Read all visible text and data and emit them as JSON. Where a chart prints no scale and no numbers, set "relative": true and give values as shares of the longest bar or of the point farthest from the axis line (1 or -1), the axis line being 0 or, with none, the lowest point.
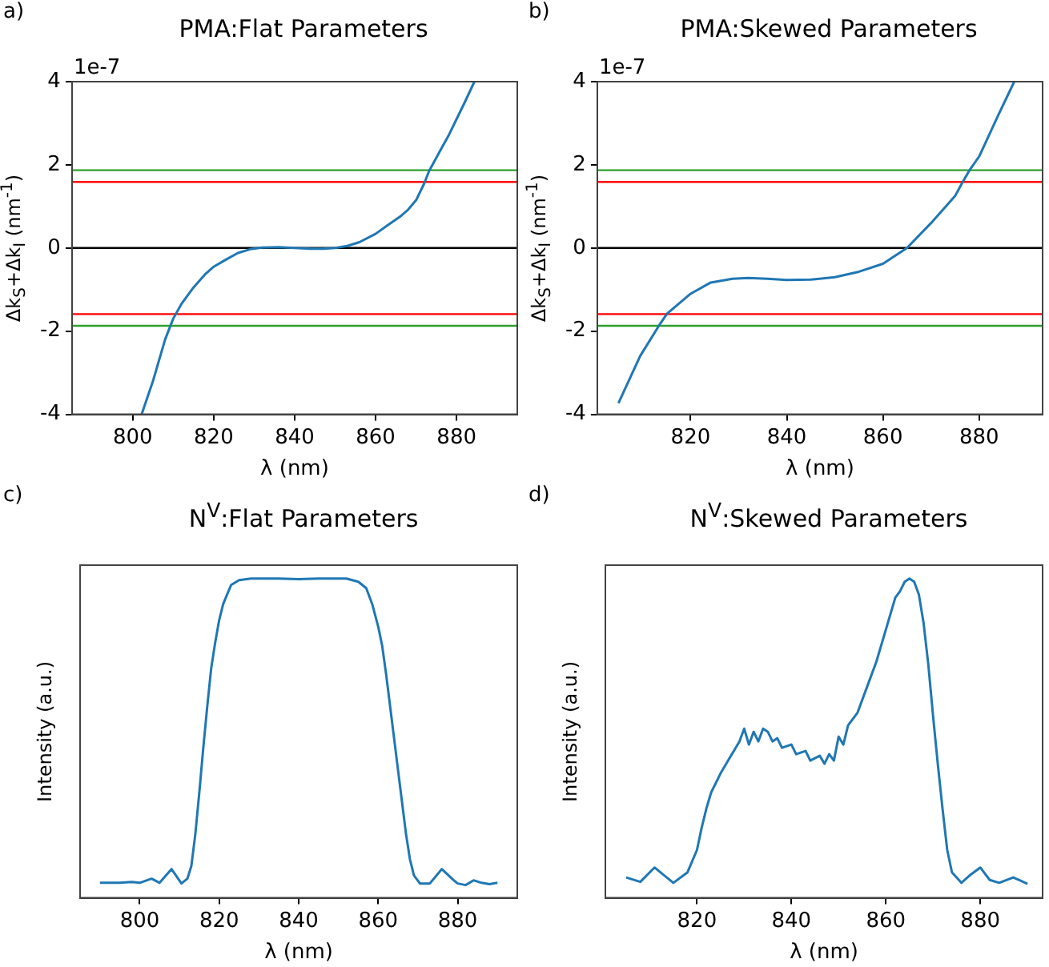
{
  "chart_data": [
    {
      "type": "line",
      "title": "PMA:Flat Parameters",
      "xlabel": "λ (nm)",
      "ylabel": "Δk$_{S}$+Δk$_{I}$ (nm$^{-1}$)",
      "annotations": [
        "a)",
        "1e-7"
      ],
      "x": [
        802.2,
        805,
        808,
        810,
        812,
        815,
        818,
        820,
        823,
        826,
        829,
        832,
        836,
        840,
        844,
        847,
        850,
        853,
        856,
        860,
        863,
        866,
        868,
        870,
        872,
        873.2,
        876,
        878,
        880,
        882,
        884.4
      ],
      "series": [
        {
          "color": "#1f77b4",
          "values": [
            -4,
            -3.2,
            -2.2,
            -1.7,
            -1.35,
            -0.95,
            -0.62,
            -0.45,
            -0.28,
            -0.12,
            -0.03,
            0.01,
            0.02,
            0,
            -0.02,
            -0.02,
            0,
            0.05,
            0.14,
            0.34,
            0.55,
            0.75,
            0.92,
            1.15,
            1.55,
            1.85,
            2.35,
            2.7,
            3.1,
            3.5,
            4
          ]
        }
      ],
      "xlim": [
        785,
        895
      ],
      "xticks": [
        800,
        820,
        840,
        860,
        880
      ],
      "ylim": [
        -4,
        4
      ],
      "yticks": [
        -4,
        -2,
        0,
        2,
        4
      ],
      "ref_lines": [
        {
          "axis": "y",
          "value": 1.87,
          "color": "#2ca02c"
        },
        {
          "axis": "y",
          "value": 1.59,
          "color": "#ff0000"
        },
        {
          "axis": "y",
          "value": 0,
          "color": "#000000"
        },
        {
          "axis": "y",
          "value": -1.59,
          "color": "#ff0000"
        },
        {
          "axis": "y",
          "value": -1.87,
          "color": "#2ca02c"
        }
      ],
      "legend": false,
      "grid": false,
      "marker": "none"
    },
    {
      "type": "line",
      "title": "PMA:Skewed Parameters",
      "xlabel": "λ (nm)",
      "ylabel": "Δk$_{S}$+Δk$_{I}$ (nm$^{-1}$)",
      "annotations": [
        "b)",
        "1e-7"
      ],
      "x": [
        805,
        809.5,
        813.4,
        815.1,
        820,
        824.2,
        828.7,
        832,
        836,
        840,
        845,
        850,
        855,
        860,
        865,
        870,
        875,
        876.5,
        878,
        880,
        884,
        887.3
      ],
      "series": [
        {
          "color": "#1f77b4",
          "values": [
            -3.73,
            -2.6,
            -1.87,
            -1.58,
            -1.1,
            -0.83,
            -0.74,
            -0.72,
            -0.74,
            -0.77,
            -0.76,
            -0.7,
            -0.57,
            -0.38,
            0,
            0.6,
            1.25,
            1.57,
            1.87,
            2.2,
            3.2,
            4
          ]
        }
      ],
      "xlim": [
        800.6,
        893.2
      ],
      "xticks": [
        820,
        840,
        860,
        880
      ],
      "ylim": [
        -4,
        4
      ],
      "yticks": [
        -4,
        -2,
        0,
        2,
        4
      ],
      "ref_lines": [
        {
          "axis": "y",
          "value": 1.87,
          "color": "#2ca02c"
        },
        {
          "axis": "y",
          "value": 1.59,
          "color": "#ff0000"
        },
        {
          "axis": "y",
          "value": 0,
          "color": "#000000"
        },
        {
          "axis": "y",
          "value": -1.59,
          "color": "#ff0000"
        },
        {
          "axis": "y",
          "value": -1.87,
          "color": "#2ca02c"
        }
      ],
      "legend": false,
      "grid": false,
      "marker": "none"
    },
    {
      "type": "line",
      "title": "N$^{V}$:Flat Parameters",
      "xlabel": "λ (nm)",
      "ylabel": "Intensity (a.u.)",
      "annotations": [
        "c)"
      ],
      "relative": true,
      "x": [
        790,
        795,
        798,
        800,
        803,
        805,
        808,
        810.5,
        812,
        813,
        814,
        815,
        816,
        817,
        818,
        819,
        820,
        821,
        822,
        823,
        825,
        828,
        835,
        840,
        845,
        852,
        855,
        857,
        858.5,
        860,
        861,
        862,
        863,
        864,
        865,
        866,
        867,
        868,
        869,
        870.5,
        873,
        876,
        879,
        880,
        882,
        884,
        886,
        888,
        890
      ],
      "series": [
        {
          "color": "#1f77b4",
          "values": [
            0.047,
            0.047,
            0.05,
            0.047,
            0.06,
            0.047,
            0.09,
            0.045,
            0.06,
            0.1,
            0.2,
            0.33,
            0.47,
            0.6,
            0.72,
            0.8,
            0.87,
            0.92,
            0.95,
            0.98,
            0.995,
            1,
            1,
            0.998,
            1,
            1,
            0.99,
            0.97,
            0.92,
            0.85,
            0.79,
            0.7,
            0.6,
            0.5,
            0.4,
            0.3,
            0.2,
            0.12,
            0.07,
            0.045,
            0.045,
            0.09,
            0.055,
            0.045,
            0.04,
            0.055,
            0.047,
            0.043,
            0.047
          ]
        }
      ],
      "xlim": [
        785,
        895
      ],
      "xticks": [
        800,
        820,
        840,
        860,
        880
      ],
      "legend": false,
      "grid": false,
      "marker": "none"
    },
    {
      "type": "line",
      "title": "N$^{V}$:Skewed Parameters",
      "xlabel": "λ (nm)",
      "ylabel": "Intensity (a.u.)",
      "annotations": [
        "d)"
      ],
      "relative": true,
      "x": [
        805,
        808,
        811,
        815,
        818,
        820,
        821,
        822,
        823,
        825,
        827,
        829,
        830,
        831,
        832,
        833,
        834,
        835,
        836,
        837,
        838,
        840,
        841,
        843,
        844,
        846,
        847,
        848,
        849,
        850,
        851,
        852,
        854,
        856,
        858,
        860,
        862,
        863,
        864,
        865,
        866,
        867,
        868,
        869,
        870,
        871,
        872,
        873,
        874,
        876,
        878,
        880,
        882,
        884,
        887,
        890
      ],
      "series": [
        {
          "color": "#1f77b4",
          "values": [
            0.064,
            0.05,
            0.095,
            0.047,
            0.08,
            0.15,
            0.22,
            0.28,
            0.33,
            0.39,
            0.44,
            0.49,
            0.53,
            0.48,
            0.52,
            0.49,
            0.53,
            0.52,
            0.49,
            0.5,
            0.47,
            0.48,
            0.45,
            0.46,
            0.43,
            0.445,
            0.42,
            0.45,
            0.43,
            0.505,
            0.48,
            0.54,
            0.58,
            0.66,
            0.74,
            0.84,
            0.94,
            0.96,
            0.99,
            1,
            0.99,
            0.95,
            0.86,
            0.73,
            0.57,
            0.42,
            0.28,
            0.15,
            0.08,
            0.047,
            0.073,
            0.095,
            0.056,
            0.047,
            0.064,
            0.044
          ]
        }
      ],
      "xlim": [
        800.6,
        893.2
      ],
      "xticks": [
        820,
        840,
        860,
        880
      ],
      "legend": false,
      "grid": false,
      "marker": "none"
    }
  ]
}
